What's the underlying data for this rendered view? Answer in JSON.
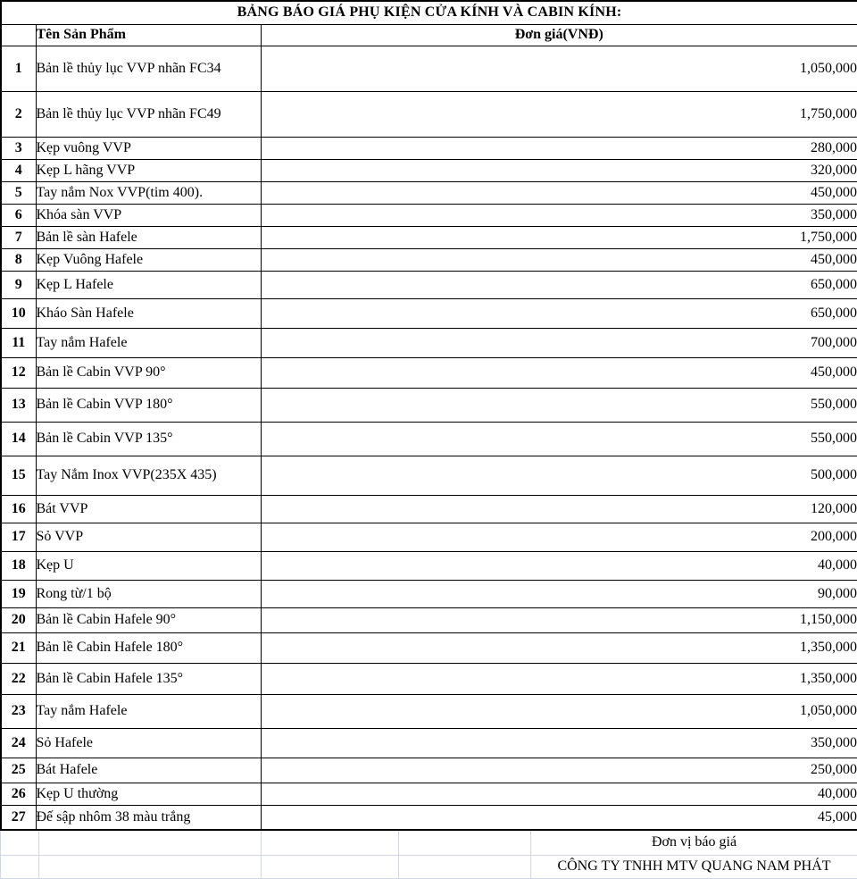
{
  "title": "BẢNG BÁO GIÁ PHỤ KIỆN CỬA KÍNH VÀ CABIN KÍNH:",
  "table": {
    "header": {
      "product": "Tên Sản Phẩm",
      "price": "Đơn giá(VNĐ)"
    },
    "rows": [
      {
        "no": "1",
        "name": "Bản lề thủy lục VVP nhãn FC34",
        "price": "1,050,000"
      },
      {
        "no": "2",
        "name": "Bản lề thủy lục VVP nhãn FC49",
        "price": "1,750,000"
      },
      {
        "no": "3",
        "name": "Kẹp vuông VVP",
        "price": "280,000"
      },
      {
        "no": "4",
        "name": "Kẹp L hãng VVP",
        "price": "320,000"
      },
      {
        "no": "5",
        "name": "Tay nắm Nox VVP(tim 400).",
        "price": "450,000"
      },
      {
        "no": "6",
        "name": "Khóa sàn VVP",
        "price": "350,000"
      },
      {
        "no": "7",
        "name": "Bản lề sàn Hafele",
        "price": "1,750,000"
      },
      {
        "no": "8",
        "name": "Kẹp Vuông Hafele",
        "price": "450,000"
      },
      {
        "no": "9",
        "name": "Kẹp L Hafele",
        "price": "650,000"
      },
      {
        "no": "10",
        "name": "Kháo Sàn Hafele",
        "price": "650,000"
      },
      {
        "no": "11",
        "name": "Tay nắm Hafele",
        "price": "700,000"
      },
      {
        "no": "12",
        "name": "Bản lề Cabin VVP 90°",
        "price": "450,000"
      },
      {
        "no": "13",
        "name": "Bản lề Cabin VVP 180°",
        "price": "550,000"
      },
      {
        "no": "14",
        "name": "Bản lề Cabin VVP 135°",
        "price": "550,000"
      },
      {
        "no": "15",
        "name": "Tay Nắm Inox VVP(235X 435)",
        "price": "500,000"
      },
      {
        "no": "16",
        "name": "Bát VVP",
        "price": "120,000"
      },
      {
        "no": "17",
        "name": "Sỏ VVP",
        "price": "200,000"
      },
      {
        "no": "18",
        "name": "Kẹp U",
        "price": "40,000"
      },
      {
        "no": "19",
        "name": "Rong từ/1 bộ",
        "price": "90,000"
      },
      {
        "no": "20",
        "name": "Bản lề Cabin Hafele 90°",
        "price": "1,150,000"
      },
      {
        "no": "21",
        "name": "Bản lề Cabin Hafele 180°",
        "price": "1,350,000"
      },
      {
        "no": "22",
        "name": "Bản lề Cabin Hafele 135°",
        "price": "1,350,000"
      },
      {
        "no": "23",
        "name": "Tay nắm Hafele",
        "price": "1,050,000"
      },
      {
        "no": "24",
        "name": "Sỏ Hafele",
        "price": "350,000"
      },
      {
        "no": "25",
        "name": "Bát Hafele",
        "price": "250,000"
      },
      {
        "no": "26",
        "name": "Kẹp U thường",
        "price": "40,000"
      },
      {
        "no": "27",
        "name": "Đế sập nhôm 38 màu trắng",
        "price": "45,000"
      }
    ]
  },
  "footer": {
    "unit_label": "Đơn vị báo giá",
    "company": "CÔNG TY TNHH MTV QUANG NAM PHÁT"
  },
  "colors": {
    "border_black": "#000000",
    "grid_light": "#cfd6e4",
    "text": "#000000",
    "background": "#ffffff"
  }
}
